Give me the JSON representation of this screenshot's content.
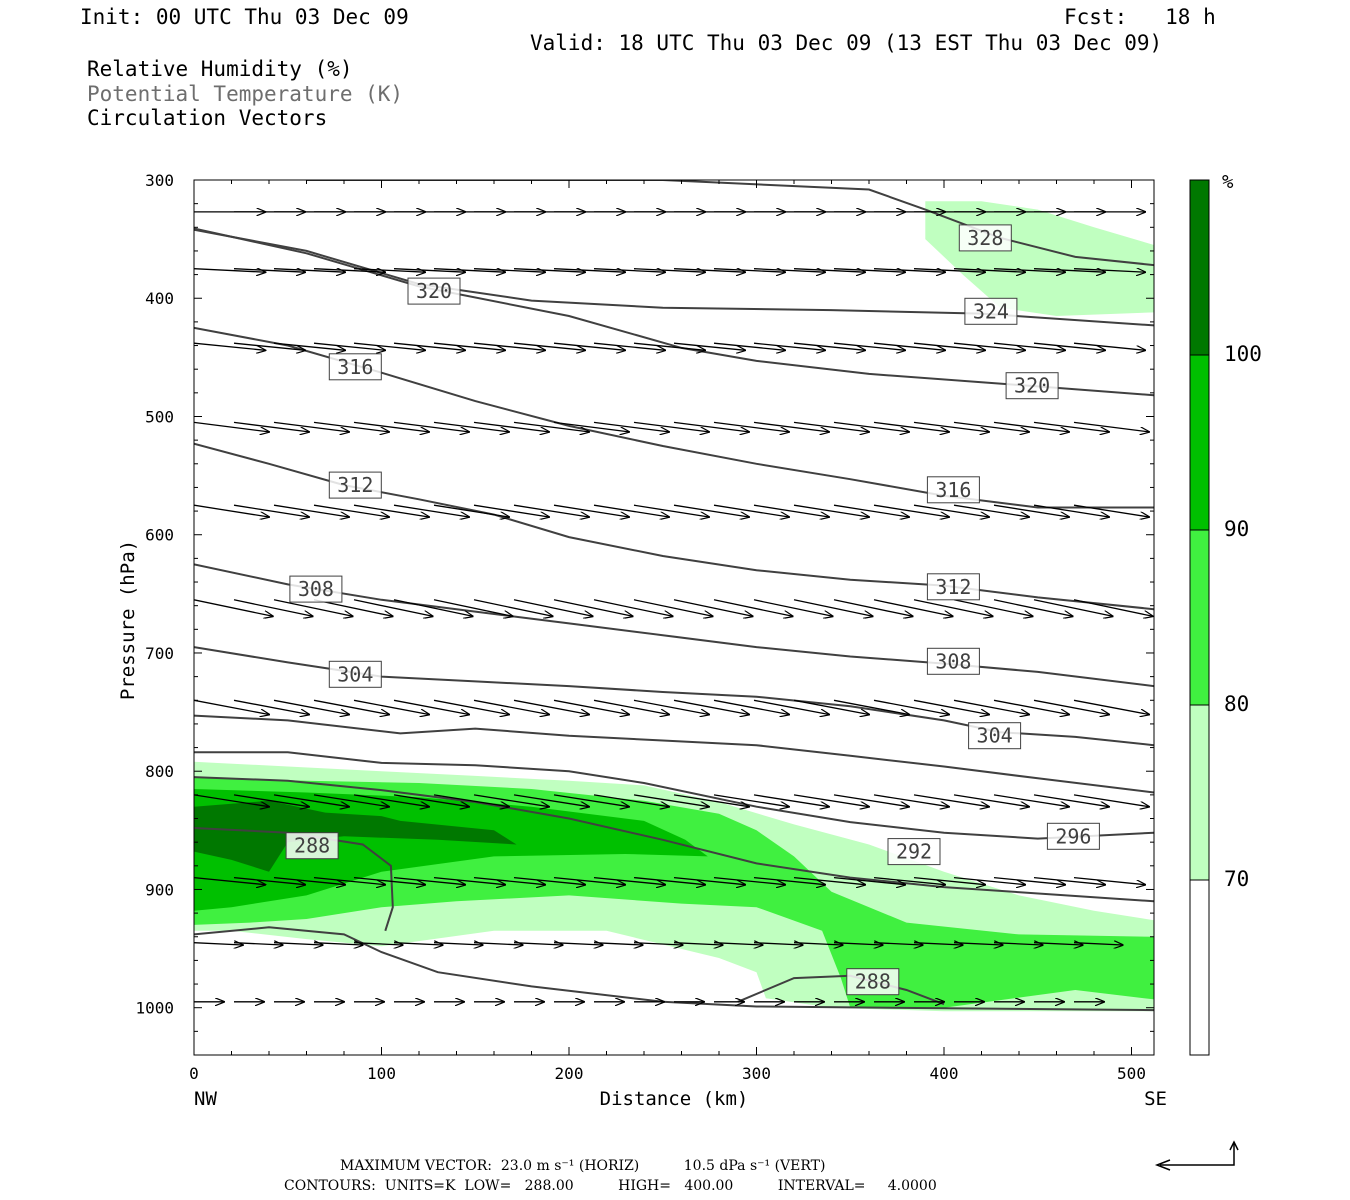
{
  "header": {
    "init": "Init: 00 UTC Thu 03 Dec 09",
    "fcst": "Fcst:   18 h",
    "valid": "Valid: 18 UTC Thu 03 Dec 09 (13 EST Thu 03 Dec 09)",
    "fields": [
      "Relative Humidity (%)",
      "Potential Temperature (K)",
      "Circulation Vectors"
    ]
  },
  "footer": {
    "max_vector": "MAXIMUM VECTOR:  23.0 m s⁻¹ (HORIZ)          10.5 dPa s⁻¹ (VERT)",
    "contours": "CONTOURS:  UNITS=K  LOW=   288.00          HIGH=   400.00          INTERVAL=     4.0000"
  },
  "colors": {
    "rh_70": "#c0ffc0",
    "rh_80": "#40f040",
    "rh_90": "#00c000",
    "rh_100": "#007800",
    "contour": "#404040",
    "vector": "#000000"
  },
  "chart_data": {
    "type": "cross-section",
    "xlabel": "Distance (km)",
    "ylabel": "Pressure (hPa)",
    "xlim": [
      0,
      512
    ],
    "ylim": [
      1040,
      300
    ],
    "x_ticks": [
      0,
      100,
      200,
      300,
      400,
      500
    ],
    "y_ticks": [
      300,
      400,
      500,
      600,
      700,
      800,
      900,
      1000
    ],
    "x_end_labels": [
      "NW",
      "SE"
    ],
    "colorbar": {
      "unit": "%",
      "levels": [
        70,
        80,
        90,
        100
      ],
      "colors": [
        "#ffffff",
        "#c0ffc0",
        "#40f040",
        "#00c000",
        "#007800"
      ]
    },
    "rh_fill": [
      {
        "level": 70,
        "points": [
          [
            0,
            792
          ],
          [
            50,
            796
          ],
          [
            100,
            800
          ],
          [
            150,
            804
          ],
          [
            200,
            808
          ],
          [
            240,
            812
          ],
          [
            280,
            826
          ],
          [
            320,
            845
          ],
          [
            360,
            862
          ],
          [
            400,
            885
          ],
          [
            440,
            905
          ],
          [
            480,
            918
          ],
          [
            512,
            926
          ],
          [
            512,
            1003
          ],
          [
            400,
            1003
          ],
          [
            340,
            1000
          ],
          [
            305,
            992
          ],
          [
            300,
            970
          ],
          [
            280,
            958
          ],
          [
            220,
            935
          ],
          [
            160,
            935
          ],
          [
            100,
            948
          ],
          [
            60,
            942
          ],
          [
            20,
            935
          ],
          [
            0,
            935
          ]
        ]
      },
      {
        "level": 70,
        "points": [
          [
            390,
            318
          ],
          [
            420,
            318
          ],
          [
            450,
            325
          ],
          [
            480,
            340
          ],
          [
            512,
            355
          ],
          [
            512,
            412
          ],
          [
            460,
            415
          ],
          [
            430,
            408
          ],
          [
            410,
            380
          ],
          [
            390,
            350
          ]
        ]
      },
      {
        "level": 80,
        "points": [
          [
            0,
            805
          ],
          [
            60,
            808
          ],
          [
            120,
            810
          ],
          [
            180,
            815
          ],
          [
            240,
            825
          ],
          [
            280,
            836
          ],
          [
            300,
            850
          ],
          [
            320,
            872
          ],
          [
            340,
            902
          ],
          [
            380,
            928
          ],
          [
            440,
            938
          ],
          [
            512,
            940
          ],
          [
            512,
            993
          ],
          [
            470,
            985
          ],
          [
            400,
            1000
          ],
          [
            350,
            1000
          ],
          [
            345,
            975
          ],
          [
            335,
            935
          ],
          [
            300,
            915
          ],
          [
            260,
            912
          ],
          [
            200,
            905
          ],
          [
            140,
            910
          ],
          [
            100,
            915
          ],
          [
            60,
            925
          ],
          [
            30,
            928
          ],
          [
            0,
            930
          ]
        ]
      },
      {
        "level": 90,
        "points": [
          [
            0,
            815
          ],
          [
            60,
            818
          ],
          [
            120,
            822
          ],
          [
            180,
            830
          ],
          [
            240,
            842
          ],
          [
            262,
            858
          ],
          [
            274,
            872
          ],
          [
            230,
            870
          ],
          [
            160,
            872
          ],
          [
            100,
            885
          ],
          [
            60,
            905
          ],
          [
            20,
            915
          ],
          [
            0,
            918
          ]
        ]
      },
      {
        "level": 100,
        "points": [
          [
            0,
            830
          ],
          [
            40,
            825
          ],
          [
            70,
            835
          ],
          [
            100,
            838
          ],
          [
            110,
            842
          ],
          [
            160,
            850
          ],
          [
            172,
            862
          ],
          [
            130,
            858
          ],
          [
            80,
            855
          ],
          [
            50,
            860
          ],
          [
            40,
            885
          ],
          [
            20,
            875
          ],
          [
            0,
            868
          ]
        ]
      }
    ],
    "theta_contours": [
      {
        "label": "328",
        "label_at": [
          422,
          349
        ],
        "points": [
          [
            60,
            300
          ],
          [
            150,
            300
          ],
          [
            250,
            300
          ],
          [
            360,
            308
          ],
          [
            390,
            325
          ],
          [
            430,
            349
          ],
          [
            470,
            365
          ],
          [
            512,
            372
          ]
        ]
      },
      {
        "label": "324",
        "label_at": [
          425,
          411
        ],
        "points": [
          [
            0,
            342
          ],
          [
            60,
            360
          ],
          [
            120,
            388
          ],
          [
            180,
            402
          ],
          [
            250,
            408
          ],
          [
            340,
            410
          ],
          [
            420,
            413
          ],
          [
            512,
            423
          ]
        ]
      },
      {
        "label": "320",
        "label_at": [
          128,
          394
        ],
        "points": [
          [
            0,
            341
          ],
          [
            60,
            362
          ],
          [
            120,
            390
          ],
          [
            200,
            415
          ],
          [
            260,
            442
          ],
          [
            300,
            453
          ],
          [
            360,
            464
          ],
          [
            420,
            471
          ],
          [
            512,
            482
          ]
        ]
      },
      {
        "label": "320",
        "label_at": [
          447,
          474
        ],
        "points": [
          [
            0,
            341
          ],
          [
            60,
            362
          ],
          [
            120,
            390
          ],
          [
            200,
            415
          ],
          [
            260,
            442
          ],
          [
            300,
            453
          ],
          [
            360,
            464
          ],
          [
            420,
            471
          ],
          [
            512,
            482
          ]
        ]
      },
      {
        "label": "316",
        "label_at": [
          86,
          458
        ],
        "points": [
          [
            0,
            425
          ],
          [
            50,
            440
          ],
          [
            100,
            463
          ],
          [
            150,
            487
          ],
          [
            200,
            508
          ],
          [
            250,
            525
          ],
          [
            300,
            540
          ],
          [
            350,
            553
          ],
          [
            400,
            567
          ],
          [
            450,
            577
          ],
          [
            512,
            577
          ]
        ]
      },
      {
        "label": "316",
        "label_at": [
          405,
          562
        ],
        "points": [
          [
            0,
            425
          ],
          [
            50,
            440
          ],
          [
            100,
            463
          ],
          [
            150,
            487
          ],
          [
            200,
            508
          ],
          [
            250,
            525
          ],
          [
            300,
            540
          ],
          [
            350,
            553
          ],
          [
            400,
            567
          ],
          [
            450,
            577
          ],
          [
            512,
            577
          ]
        ]
      },
      {
        "label": "312",
        "label_at": [
          86,
          558
        ],
        "points": [
          [
            0,
            523
          ],
          [
            40,
            540
          ],
          [
            80,
            558
          ],
          [
            120,
            570
          ],
          [
            160,
            583
          ],
          [
            200,
            602
          ],
          [
            250,
            618
          ],
          [
            300,
            630
          ],
          [
            350,
            638
          ],
          [
            400,
            643
          ],
          [
            450,
            653
          ],
          [
            512,
            663
          ]
        ]
      },
      {
        "label": "312",
        "label_at": [
          405,
          644
        ],
        "points": [
          [
            0,
            523
          ],
          [
            40,
            540
          ],
          [
            80,
            558
          ],
          [
            120,
            570
          ],
          [
            160,
            583
          ],
          [
            200,
            602
          ],
          [
            250,
            618
          ],
          [
            300,
            630
          ],
          [
            350,
            638
          ],
          [
            400,
            643
          ],
          [
            450,
            653
          ],
          [
            512,
            663
          ]
        ]
      },
      {
        "label": "308",
        "label_at": [
          65,
          646
        ],
        "points": [
          [
            0,
            625
          ],
          [
            50,
            642
          ],
          [
            100,
            655
          ],
          [
            150,
            665
          ],
          [
            200,
            675
          ],
          [
            250,
            685
          ],
          [
            300,
            695
          ],
          [
            350,
            703
          ],
          [
            400,
            709
          ],
          [
            450,
            716
          ],
          [
            512,
            728
          ]
        ]
      },
      {
        "label": "308",
        "label_at": [
          405,
          707
        ],
        "points": [
          [
            0,
            625
          ],
          [
            50,
            642
          ],
          [
            100,
            655
          ],
          [
            150,
            665
          ],
          [
            200,
            675
          ],
          [
            250,
            685
          ],
          [
            300,
            695
          ],
          [
            350,
            703
          ],
          [
            400,
            709
          ],
          [
            450,
            716
          ],
          [
            512,
            728
          ]
        ]
      },
      {
        "label": "304",
        "label_at": [
          86,
          718
        ],
        "points": [
          [
            0,
            695
          ],
          [
            50,
            708
          ],
          [
            100,
            720
          ],
          [
            150,
            724
          ],
          [
            200,
            728
          ],
          [
            250,
            733
          ],
          [
            300,
            737
          ],
          [
            350,
            745
          ],
          [
            400,
            757
          ],
          [
            430,
            767
          ],
          [
            470,
            771
          ],
          [
            512,
            778
          ]
        ]
      },
      {
        "label": "304",
        "label_at": [
          427,
          770
        ],
        "points": [
          [
            0,
            753
          ],
          [
            50,
            757
          ],
          [
            110,
            768
          ],
          [
            150,
            764
          ],
          [
            200,
            770
          ],
          [
            250,
            774
          ],
          [
            300,
            778
          ],
          [
            350,
            787
          ],
          [
            400,
            796
          ],
          [
            450,
            806
          ],
          [
            512,
            818
          ]
        ]
      },
      {
        "label": "",
        "label_at": null,
        "points": [
          [
            0,
            784
          ],
          [
            50,
            784
          ],
          [
            100,
            793
          ],
          [
            150,
            795
          ],
          [
            200,
            800
          ],
          [
            240,
            810
          ],
          [
            300,
            830
          ],
          [
            350,
            843
          ],
          [
            400,
            852
          ],
          [
            450,
            857
          ],
          [
            512,
            852
          ]
        ]
      },
      {
        "label": "296",
        "label_at": [
          469,
          855
        ],
        "points": [
          [
            0,
            805
          ],
          [
            50,
            808
          ],
          [
            100,
            816
          ],
          [
            150,
            826
          ],
          [
            200,
            840
          ],
          [
            250,
            858
          ],
          [
            300,
            878
          ],
          [
            350,
            890
          ],
          [
            400,
            898
          ],
          [
            512,
            910
          ]
        ]
      },
      {
        "label": "292",
        "label_at": [
          384,
          868
        ],
        "points": [
          [
            0,
            848
          ],
          [
            50,
            852
          ],
          [
            90,
            862
          ],
          [
            105,
            880
          ],
          [
            106,
            915
          ],
          [
            102,
            935
          ]
        ]
      },
      {
        "label": "288",
        "label_at": [
          63,
          863
        ],
        "points": [
          [
            0,
            938
          ],
          [
            40,
            932
          ],
          [
            80,
            938
          ],
          [
            100,
            953
          ],
          [
            130,
            970
          ],
          [
            180,
            982
          ],
          [
            250,
            995
          ],
          [
            300,
            999
          ],
          [
            512,
            1002
          ]
        ]
      },
      {
        "label": "288",
        "label_at": [
          362,
          978
        ],
        "points": [
          [
            290,
            995
          ],
          [
            320,
            975
          ],
          [
            350,
            973
          ],
          [
            380,
            985
          ],
          [
            400,
            997
          ]
        ]
      }
    ],
    "vector_rows": [
      {
        "p": 327,
        "dx": 38,
        "dp": 0
      },
      {
        "p": 375,
        "dx": 38,
        "dp": 3
      },
      {
        "p": 438,
        "dx": 38,
        "dp": 6
      },
      {
        "p": 505,
        "dx": 40,
        "dp": 8
      },
      {
        "p": 575,
        "dx": 40,
        "dp": 10
      },
      {
        "p": 655,
        "dx": 42,
        "dp": 14
      },
      {
        "p": 740,
        "dx": 40,
        "dp": 12
      },
      {
        "p": 820,
        "dx": 40,
        "dp": 10
      },
      {
        "p": 890,
        "dx": 38,
        "dp": 6
      },
      {
        "p": 945,
        "dx": 26,
        "dp": 2
      },
      {
        "p": 995,
        "dx": 16,
        "dp": 0
      }
    ]
  }
}
